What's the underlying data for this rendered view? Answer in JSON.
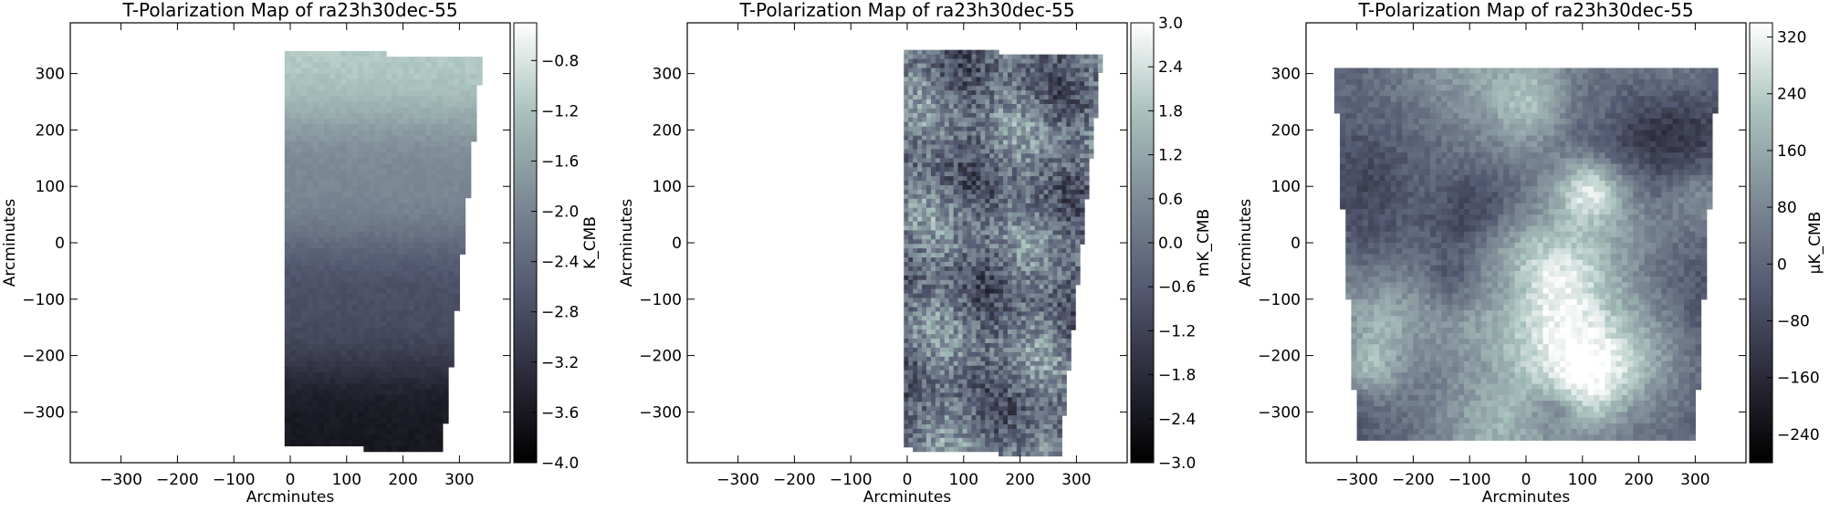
{
  "figure": {
    "palette": [
      "#000000",
      "#2b2b3a",
      "#545a71",
      "#7e8b96",
      "#a9c2bd",
      "#ffffff"
    ]
  },
  "chart_data": [
    {
      "type": "heatmap",
      "title": "T-Polarization Map of ra23h30dec-55",
      "xlabel": "Arcminutes",
      "ylabel": "Arcminutes",
      "xlim": [
        -390,
        390
      ],
      "ylim": [
        -390,
        390
      ],
      "x_ticks": [
        -300,
        -200,
        -100,
        0,
        100,
        200,
        300
      ],
      "y_ticks": [
        -300,
        -200,
        -100,
        0,
        100,
        200,
        300
      ],
      "colorbar": {
        "label": "K_CMB",
        "range": [
          -4.0,
          -0.5
        ],
        "ticks": [
          "-0.8",
          "-1.2",
          "-1.6",
          "-2.0",
          "-2.4",
          "-2.8",
          "-3.2",
          "-3.6",
          "-4.0"
        ],
        "tick_values": [
          -0.8,
          -1.2,
          -1.6,
          -2.0,
          -2.4,
          -2.8,
          -3.2,
          -3.6,
          -4.0
        ]
      },
      "coverage_corners": [
        [
          -5,
          340
        ],
        [
          340,
          330
        ],
        [
          270,
          -370
        ],
        [
          -5,
          -360
        ]
      ],
      "pattern": "gradient"
    },
    {
      "type": "heatmap",
      "title": "T-Polarization Map of ra23h30dec-55",
      "xlabel": "Arcminutes",
      "ylabel": "Arcminutes",
      "xlim": [
        -390,
        390
      ],
      "ylim": [
        -390,
        390
      ],
      "x_ticks": [
        -300,
        -200,
        -100,
        0,
        100,
        200,
        300
      ],
      "y_ticks": [
        -300,
        -200,
        -100,
        0,
        100,
        200,
        300
      ],
      "colorbar": {
        "label": "mK_CMB",
        "range": [
          -3.0,
          3.0
        ],
        "ticks": [
          "3.0",
          "2.4",
          "1.8",
          "1.2",
          "0.6",
          "0.0",
          "-0.6",
          "-1.2",
          "-1.8",
          "-2.4",
          "-3.0"
        ],
        "tick_values": [
          3.0,
          2.4,
          1.8,
          1.2,
          0.6,
          0.0,
          -0.6,
          -1.2,
          -1.8,
          -2.4,
          -3.0
        ]
      },
      "coverage_corners": [
        [
          -5,
          345
        ],
        [
          345,
          330
        ],
        [
          270,
          -380
        ],
        [
          -5,
          -365
        ]
      ],
      "pattern": "noise"
    },
    {
      "type": "heatmap",
      "title": "T-Polarization Map of ra23h30dec-55",
      "xlabel": "Arcminutes",
      "ylabel": "Arcminutes",
      "xlim": [
        -390,
        390
      ],
      "ylim": [
        -390,
        390
      ],
      "x_ticks": [
        -300,
        -200,
        -100,
        0,
        100,
        200,
        300
      ],
      "y_ticks": [
        -300,
        -200,
        -100,
        0,
        100,
        200,
        300
      ],
      "colorbar": {
        "label": "μK_CMB",
        "range": [
          -280,
          340
        ],
        "ticks": [
          "320",
          "240",
          "160",
          "80",
          "0",
          "-80",
          "-160",
          "-240"
        ],
        "tick_values": [
          320,
          240,
          160,
          80,
          0,
          -80,
          -160,
          -240
        ]
      },
      "coverage_corners": [
        [
          -340,
          310
        ],
        [
          340,
          310
        ],
        [
          300,
          -345
        ],
        [
          -300,
          -345
        ]
      ],
      "pattern": "smooth"
    }
  ]
}
